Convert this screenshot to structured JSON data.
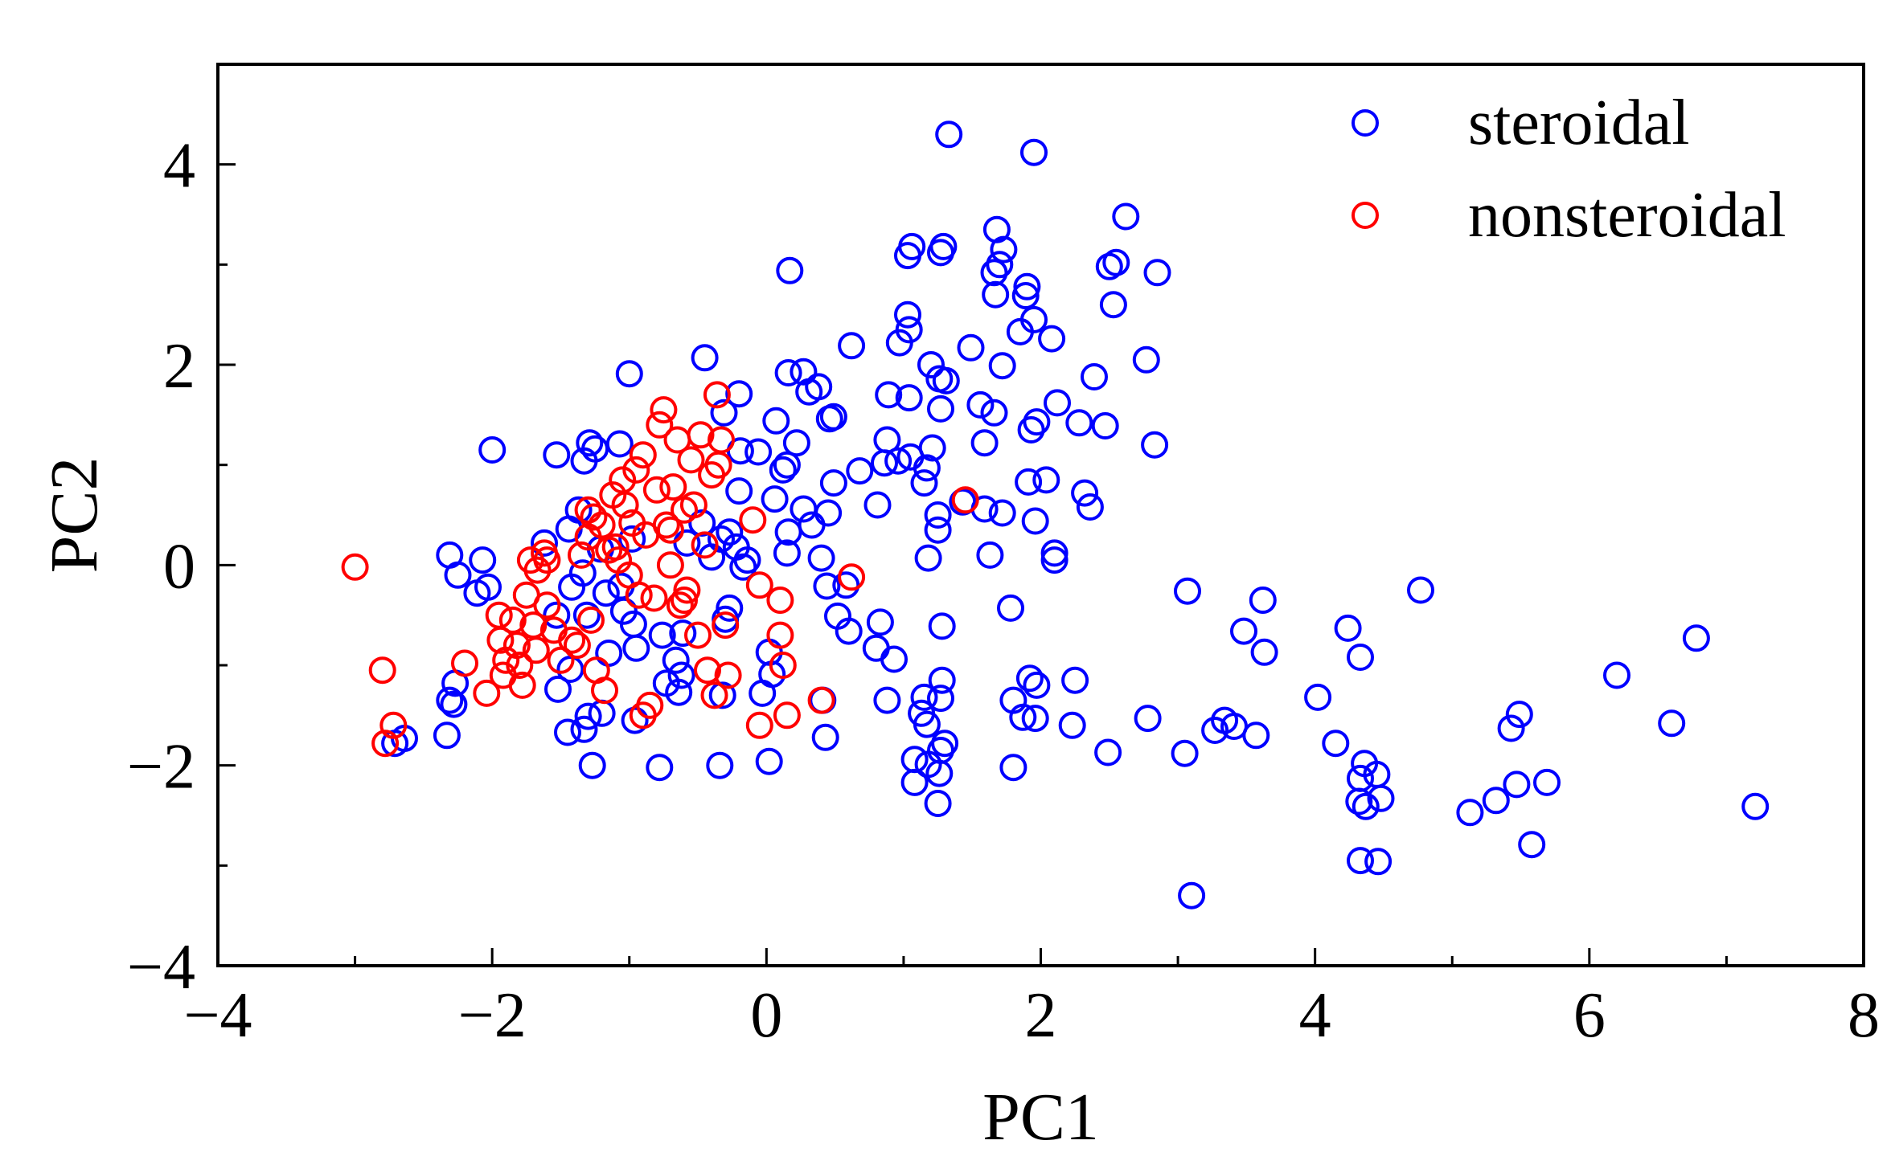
{
  "chart_data": {
    "type": "scatter",
    "title": "",
    "xlabel": "PC1",
    "ylabel": "PC2",
    "xlim": [
      -4,
      8
    ],
    "ylim": [
      -4,
      5
    ],
    "xticks": [
      -4,
      -2,
      0,
      2,
      4,
      6,
      8
    ],
    "xtick_labels": [
      "−4",
      "−2",
      "0",
      "2",
      "4",
      "6",
      "8"
    ],
    "yticks": [
      -4,
      -2,
      0,
      2,
      4
    ],
    "ytick_labels": [
      "−4",
      "−2",
      "0",
      "2",
      "4"
    ],
    "grid": false,
    "legend_position": "top-right",
    "marker": "open-circle",
    "series": [
      {
        "name": "steroidal",
        "color": "#0000ff",
        "points": [
          [
            1.33,
            4.3
          ],
          [
            1.95,
            4.12
          ],
          [
            2.62,
            3.48
          ],
          [
            1.68,
            3.35
          ],
          [
            1.06,
            3.18
          ],
          [
            1.29,
            3.18
          ],
          [
            1.03,
            3.09
          ],
          [
            1.27,
            3.12
          ],
          [
            1.73,
            3.15
          ],
          [
            2.5,
            2.98
          ],
          [
            2.55,
            3.02
          ],
          [
            2.85,
            2.92
          ],
          [
            0.17,
            2.94
          ],
          [
            1.66,
            2.92
          ],
          [
            1.7,
            3.0
          ],
          [
            1.9,
            2.78
          ],
          [
            1.89,
            2.69
          ],
          [
            1.67,
            2.7
          ],
          [
            2.53,
            2.6
          ],
          [
            1.03,
            2.5
          ],
          [
            1.04,
            2.35
          ],
          [
            1.95,
            2.45
          ],
          [
            1.85,
            2.33
          ],
          [
            2.08,
            2.26
          ],
          [
            0.62,
            2.19
          ],
          [
            1.49,
            2.17
          ],
          [
            0.97,
            2.22
          ],
          [
            1.72,
            1.99
          ],
          [
            2.77,
            2.05
          ],
          [
            -0.45,
            2.07
          ],
          [
            1.2,
            2.0
          ],
          [
            0.16,
            1.92
          ],
          [
            0.27,
            1.93
          ],
          [
            1.31,
            1.84
          ],
          [
            1.26,
            1.86
          ],
          [
            2.39,
            1.88
          ],
          [
            0.38,
            1.78
          ],
          [
            -1.0,
            1.91
          ],
          [
            -0.2,
            1.71
          ],
          [
            0.89,
            1.7
          ],
          [
            1.04,
            1.67
          ],
          [
            0.31,
            1.73
          ],
          [
            1.56,
            1.6
          ],
          [
            1.66,
            1.52
          ],
          [
            2.12,
            1.62
          ],
          [
            1.97,
            1.43
          ],
          [
            0.46,
            1.46
          ],
          [
            0.49,
            1.48
          ],
          [
            1.93,
            1.35
          ],
          [
            1.27,
            1.56
          ],
          [
            -0.31,
            1.52
          ],
          [
            0.07,
            1.44
          ],
          [
            2.28,
            1.42
          ],
          [
            2.47,
            1.39
          ],
          [
            -0.19,
            1.14
          ],
          [
            -0.06,
            1.13
          ],
          [
            -2.0,
            1.15
          ],
          [
            -1.53,
            1.1
          ],
          [
            -1.29,
            1.22
          ],
          [
            -1.25,
            1.16
          ],
          [
            -1.07,
            1.21
          ],
          [
            -1.33,
            1.04
          ],
          [
            0.22,
            1.22
          ],
          [
            0.15,
            1.0
          ],
          [
            0.12,
            0.95
          ],
          [
            0.88,
            1.25
          ],
          [
            1.05,
            1.08
          ],
          [
            1.59,
            1.22
          ],
          [
            2.83,
            1.2
          ],
          [
            1.21,
            1.17
          ],
          [
            0.96,
            1.04
          ],
          [
            0.86,
            1.02
          ],
          [
            1.17,
            0.97
          ],
          [
            0.68,
            0.94
          ],
          [
            1.15,
            0.82
          ],
          [
            1.91,
            0.83
          ],
          [
            2.04,
            0.85
          ],
          [
            2.32,
            0.72
          ],
          [
            0.49,
            0.82
          ],
          [
            1.96,
            0.44
          ],
          [
            2.36,
            0.58
          ],
          [
            0.81,
            0.6
          ],
          [
            1.43,
            0.63
          ],
          [
            1.59,
            0.56
          ],
          [
            1.72,
            0.52
          ],
          [
            0.27,
            0.56
          ],
          [
            0.45,
            0.52
          ],
          [
            0.33,
            0.4
          ],
          [
            0.06,
            0.66
          ],
          [
            -0.2,
            0.74
          ],
          [
            -0.27,
            0.33
          ],
          [
            1.25,
            0.5
          ],
          [
            1.25,
            0.35
          ],
          [
            -1.37,
            0.55
          ],
          [
            -1.44,
            0.36
          ],
          [
            -1.62,
            0.22
          ],
          [
            -1.21,
            0.16
          ],
          [
            -0.98,
            0.26
          ],
          [
            -0.58,
            0.22
          ],
          [
            -0.47,
            0.42
          ],
          [
            -0.33,
            0.26
          ],
          [
            -0.14,
            0.05
          ],
          [
            -0.17,
            -0.02
          ],
          [
            -0.4,
            0.08
          ],
          [
            -0.22,
            0.18
          ],
          [
            0.16,
            0.33
          ],
          [
            0.15,
            0.12
          ],
          [
            0.4,
            0.07
          ],
          [
            1.18,
            0.07
          ],
          [
            1.63,
            0.1
          ],
          [
            2.1,
            0.12
          ],
          [
            2.1,
            0.05
          ],
          [
            -2.31,
            0.1
          ],
          [
            -2.07,
            0.05
          ],
          [
            -2.25,
            -0.1
          ],
          [
            -2.03,
            -0.22
          ],
          [
            -2.11,
            -0.28
          ],
          [
            -1.34,
            -0.08
          ],
          [
            -1.06,
            -0.21
          ],
          [
            -1.17,
            -0.28
          ],
          [
            -1.42,
            -0.22
          ],
          [
            -1.53,
            -0.5
          ],
          [
            -1.31,
            -0.5
          ],
          [
            -1.04,
            -0.46
          ],
          [
            -0.97,
            -0.59
          ],
          [
            -0.76,
            -0.7
          ],
          [
            -0.61,
            -0.68
          ],
          [
            -0.27,
            -0.43
          ],
          [
            -0.3,
            -0.54
          ],
          [
            0.44,
            -0.21
          ],
          [
            0.52,
            -0.51
          ],
          [
            0.6,
            -0.66
          ],
          [
            0.83,
            -0.57
          ],
          [
            0.8,
            -0.83
          ],
          [
            0.93,
            -0.94
          ],
          [
            1.78,
            -0.43
          ],
          [
            1.28,
            -0.61
          ],
          [
            0.58,
            -0.2
          ],
          [
            3.07,
            -0.26
          ],
          [
            4.77,
            -0.25
          ],
          [
            3.62,
            -0.35
          ],
          [
            3.48,
            -0.66
          ],
          [
            3.63,
            -0.87
          ],
          [
            4.24,
            -0.63
          ],
          [
            4.33,
            -0.92
          ],
          [
            6.78,
            -0.73
          ],
          [
            6.2,
            -1.1
          ],
          [
            -1.15,
            -0.88
          ],
          [
            -0.95,
            -0.83
          ],
          [
            -0.66,
            -0.95
          ],
          [
            -0.62,
            -1.1
          ],
          [
            -0.73,
            -1.18
          ],
          [
            -0.64,
            -1.27
          ],
          [
            0.02,
            -0.87
          ],
          [
            0.04,
            -1.09
          ],
          [
            -0.03,
            -1.28
          ],
          [
            0.41,
            -1.35
          ],
          [
            -0.32,
            -1.3
          ],
          [
            -2.27,
            -1.18
          ],
          [
            -2.31,
            -1.35
          ],
          [
            -2.28,
            -1.39
          ],
          [
            -2.33,
            -1.7
          ],
          [
            -1.52,
            -1.24
          ],
          [
            -1.43,
            -1.04
          ],
          [
            -1.45,
            -1.67
          ],
          [
            -1.3,
            -1.51
          ],
          [
            -1.33,
            -1.64
          ],
          [
            -1.2,
            -1.48
          ],
          [
            -0.96,
            -1.55
          ],
          [
            -1.27,
            -2.0
          ],
          [
            -0.78,
            -2.02
          ],
          [
            -0.34,
            -2.0
          ],
          [
            0.02,
            -1.96
          ],
          [
            0.43,
            -1.72
          ],
          [
            0.88,
            -1.35
          ],
          [
            1.15,
            -1.32
          ],
          [
            1.28,
            -1.15
          ],
          [
            1.27,
            -1.33
          ],
          [
            1.13,
            -1.48
          ],
          [
            1.17,
            -1.59
          ],
          [
            1.3,
            -1.78
          ],
          [
            1.27,
            -1.85
          ],
          [
            1.08,
            -1.94
          ],
          [
            1.18,
            -1.99
          ],
          [
            1.26,
            -2.08
          ],
          [
            1.08,
            -2.17
          ],
          [
            1.25,
            -2.38
          ],
          [
            1.8,
            -1.35
          ],
          [
            1.92,
            -1.13
          ],
          [
            1.97,
            -1.2
          ],
          [
            2.25,
            -1.15
          ],
          [
            1.87,
            -1.52
          ],
          [
            1.96,
            -1.53
          ],
          [
            2.23,
            -1.6
          ],
          [
            1.8,
            -2.02
          ],
          [
            2.49,
            -1.87
          ],
          [
            2.78,
            -1.53
          ],
          [
            3.05,
            -1.88
          ],
          [
            3.27,
            -1.65
          ],
          [
            3.34,
            -1.55
          ],
          [
            3.41,
            -1.61
          ],
          [
            3.57,
            -1.7
          ],
          [
            4.02,
            -1.32
          ],
          [
            4.15,
            -1.78
          ],
          [
            4.36,
            -1.98
          ],
          [
            4.33,
            -2.13
          ],
          [
            4.45,
            -2.09
          ],
          [
            4.32,
            -2.36
          ],
          [
            4.37,
            -2.41
          ],
          [
            4.48,
            -2.33
          ],
          [
            4.33,
            -2.95
          ],
          [
            4.46,
            -2.96
          ],
          [
            3.1,
            -3.3
          ],
          [
            5.13,
            -2.47
          ],
          [
            5.32,
            -2.35
          ],
          [
            5.47,
            -2.19
          ],
          [
            5.49,
            -1.49
          ],
          [
            5.43,
            -1.63
          ],
          [
            5.69,
            -2.17
          ],
          [
            5.58,
            -2.79
          ],
          [
            6.6,
            -1.58
          ],
          [
            7.21,
            -2.41
          ],
          [
            -2.64,
            -1.73
          ],
          [
            -2.71,
            -1.78
          ]
        ]
      },
      {
        "name": "nonsteroidal",
        "color": "#ff0000",
        "points": [
          [
            -3.0,
            -0.02
          ],
          [
            -2.8,
            -1.05
          ],
          [
            -2.72,
            -1.6
          ],
          [
            -2.78,
            -1.78
          ],
          [
            -2.2,
            -0.98
          ],
          [
            -2.04,
            -1.28
          ],
          [
            -1.95,
            -0.5
          ],
          [
            -1.94,
            -0.75
          ],
          [
            -1.9,
            -0.95
          ],
          [
            -1.92,
            -1.1
          ],
          [
            -1.85,
            -0.55
          ],
          [
            -1.82,
            -0.8
          ],
          [
            -1.8,
            -1.0
          ],
          [
            -1.78,
            -1.2
          ],
          [
            -1.75,
            -0.3
          ],
          [
            -1.7,
            -0.6
          ],
          [
            -1.68,
            -0.85
          ],
          [
            -1.72,
            0.05
          ],
          [
            -1.67,
            -0.05
          ],
          [
            -1.6,
            -0.4
          ],
          [
            -1.62,
            0.12
          ],
          [
            -1.6,
            0.05
          ],
          [
            -1.55,
            -0.65
          ],
          [
            -1.5,
            -0.95
          ],
          [
            -1.42,
            -0.75
          ],
          [
            -1.38,
            -0.8
          ],
          [
            -1.35,
            0.1
          ],
          [
            -1.3,
            0.28
          ],
          [
            -1.28,
            -0.55
          ],
          [
            -1.26,
            0.48
          ],
          [
            -1.24,
            -1.05
          ],
          [
            -1.2,
            0.4
          ],
          [
            -1.18,
            -1.25
          ],
          [
            -1.15,
            0.15
          ],
          [
            -1.12,
            0.7
          ],
          [
            -1.08,
            0.05
          ],
          [
            -1.05,
            0.85
          ],
          [
            -1.03,
            0.6
          ],
          [
            -1.0,
            -0.1
          ],
          [
            -0.98,
            0.42
          ],
          [
            -0.95,
            0.95
          ],
          [
            -0.93,
            -0.3
          ],
          [
            -0.9,
            1.1
          ],
          [
            -0.88,
            0.3
          ],
          [
            -0.85,
            -1.4
          ],
          [
            -0.82,
            -0.33
          ],
          [
            -0.8,
            0.75
          ],
          [
            -0.78,
            1.4
          ],
          [
            -0.75,
            1.55
          ],
          [
            -0.73,
            0.4
          ],
          [
            -0.7,
            0.0
          ],
          [
            -0.68,
            0.78
          ],
          [
            -0.65,
            1.25
          ],
          [
            -0.63,
            -0.4
          ],
          [
            -0.6,
            0.55
          ],
          [
            -0.58,
            -0.25
          ],
          [
            -0.55,
            1.05
          ],
          [
            -0.53,
            0.6
          ],
          [
            -0.5,
            -0.7
          ],
          [
            -0.48,
            1.3
          ],
          [
            -0.45,
            0.2
          ],
          [
            -0.43,
            -1.05
          ],
          [
            -0.4,
            0.9
          ],
          [
            -0.38,
            -1.3
          ],
          [
            -0.36,
            1.7
          ],
          [
            -0.35,
            1.0
          ],
          [
            -0.33,
            1.25
          ],
          [
            -0.3,
            -0.6
          ],
          [
            -0.28,
            -1.1
          ],
          [
            -0.1,
            0.45
          ],
          [
            -0.05,
            -0.2
          ],
          [
            0.1,
            -0.35
          ],
          [
            0.1,
            -0.7
          ],
          [
            0.12,
            -1.0
          ],
          [
            0.15,
            -1.5
          ],
          [
            -0.05,
            -1.6
          ],
          [
            0.4,
            -1.35
          ],
          [
            0.62,
            -0.12
          ],
          [
            1.45,
            0.65
          ],
          [
            -0.9,
            -1.5
          ],
          [
            -0.6,
            -0.35
          ],
          [
            -1.3,
            0.55
          ],
          [
            -1.1,
            0.18
          ],
          [
            -0.7,
            0.35
          ]
        ]
      }
    ]
  }
}
